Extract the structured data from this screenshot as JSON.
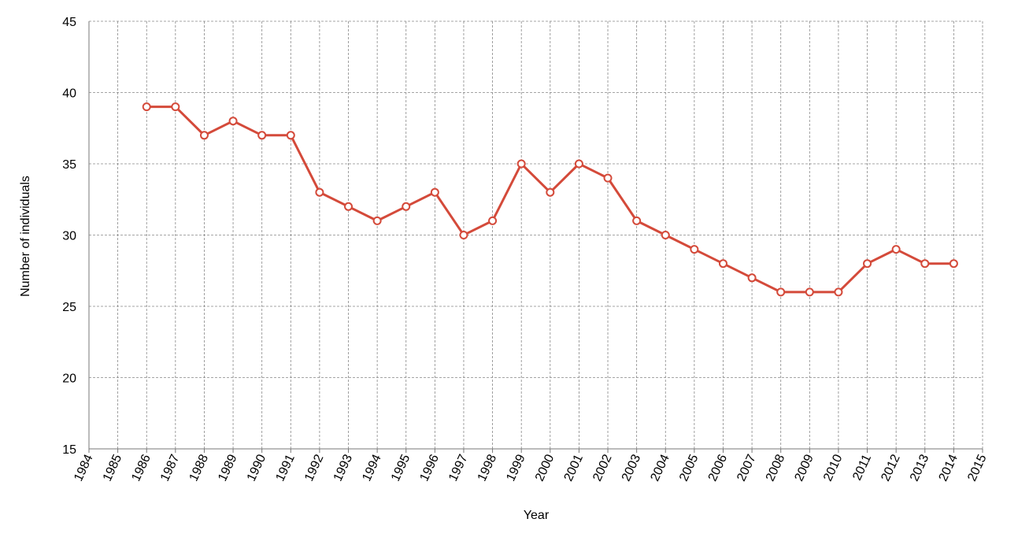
{
  "chart_data": {
    "type": "line",
    "x_label": "Year",
    "y_label": "Number of individuals",
    "x": [
      1986,
      1987,
      1988,
      1989,
      1990,
      1991,
      1992,
      1993,
      1994,
      1995,
      1996,
      1997,
      1998,
      1999,
      2000,
      2001,
      2002,
      2003,
      2004,
      2005,
      2006,
      2007,
      2008,
      2009,
      2010,
      2011,
      2012,
      2013,
      2014
    ],
    "series": [
      {
        "name": "Number of individuals",
        "color": "#d44a3a",
        "values": [
          39,
          39,
          37,
          38,
          37,
          37,
          33,
          32,
          31,
          32,
          33,
          30,
          31,
          35,
          33,
          35,
          34,
          31,
          30,
          29,
          28,
          27,
          26,
          26,
          26,
          28,
          29,
          28,
          28
        ]
      }
    ],
    "xlim": [
      1984,
      2015
    ],
    "xticks": [
      1984,
      1985,
      1986,
      1987,
      1988,
      1989,
      1990,
      1991,
      1992,
      1993,
      1994,
      1995,
      1996,
      1997,
      1998,
      1999,
      2000,
      2001,
      2002,
      2003,
      2004,
      2005,
      2006,
      2007,
      2008,
      2009,
      2010,
      2011,
      2012,
      2013,
      2014,
      2015
    ],
    "ylim": [
      15,
      45
    ],
    "yticks": [
      15,
      20,
      25,
      30,
      35,
      40,
      45
    ],
    "grid": true
  }
}
